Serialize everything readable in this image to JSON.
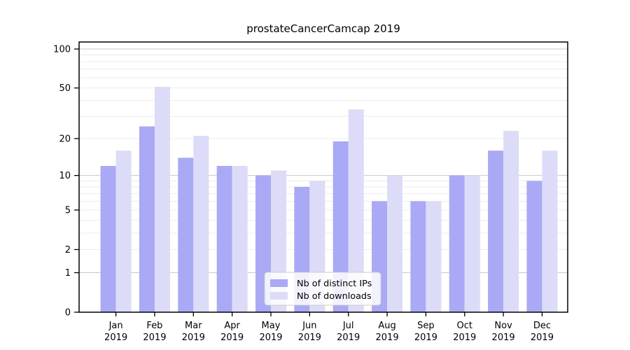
{
  "chart_data": {
    "type": "bar",
    "title": "prostateCancerCamcap 2019",
    "categories": [
      "Jan 2019",
      "Feb 2019",
      "Mar 2019",
      "Apr 2019",
      "May 2019",
      "Jun 2019",
      "Jul 2019",
      "Aug 2019",
      "Sep 2019",
      "Oct 2019",
      "Nov 2019",
      "Dec 2019"
    ],
    "x_tick_month": [
      "Jan",
      "Feb",
      "Mar",
      "Apr",
      "May",
      "Jun",
      "Jul",
      "Aug",
      "Sep",
      "Oct",
      "Nov",
      "Dec"
    ],
    "x_tick_year": "2019",
    "series": [
      {
        "name": "Nb of distinct IPs",
        "color": "#a9a9f5",
        "values": [
          12,
          25,
          14,
          12,
          10,
          8,
          19,
          6,
          6,
          10,
          16,
          9
        ]
      },
      {
        "name": "Nb of downloads",
        "color": "#dcdcf8",
        "values": [
          16,
          51,
          21,
          12,
          11,
          9,
          34,
          10,
          6,
          10,
          23,
          16
        ]
      }
    ],
    "yscale": "log1p",
    "yticks": [
      0,
      1,
      2,
      5,
      10,
      20,
      50,
      100
    ],
    "major_gridlines": [
      1,
      10,
      100
    ],
    "minor_gridlines": [
      2,
      3,
      4,
      5,
      6,
      7,
      8,
      9,
      20,
      30,
      40,
      50,
      60,
      70,
      80,
      90
    ],
    "ylim": [
      0,
      113
    ],
    "grid": true,
    "legend": {
      "position": "lower-center",
      "items": [
        "Nb of distinct IPs",
        "Nb of downloads"
      ]
    }
  }
}
